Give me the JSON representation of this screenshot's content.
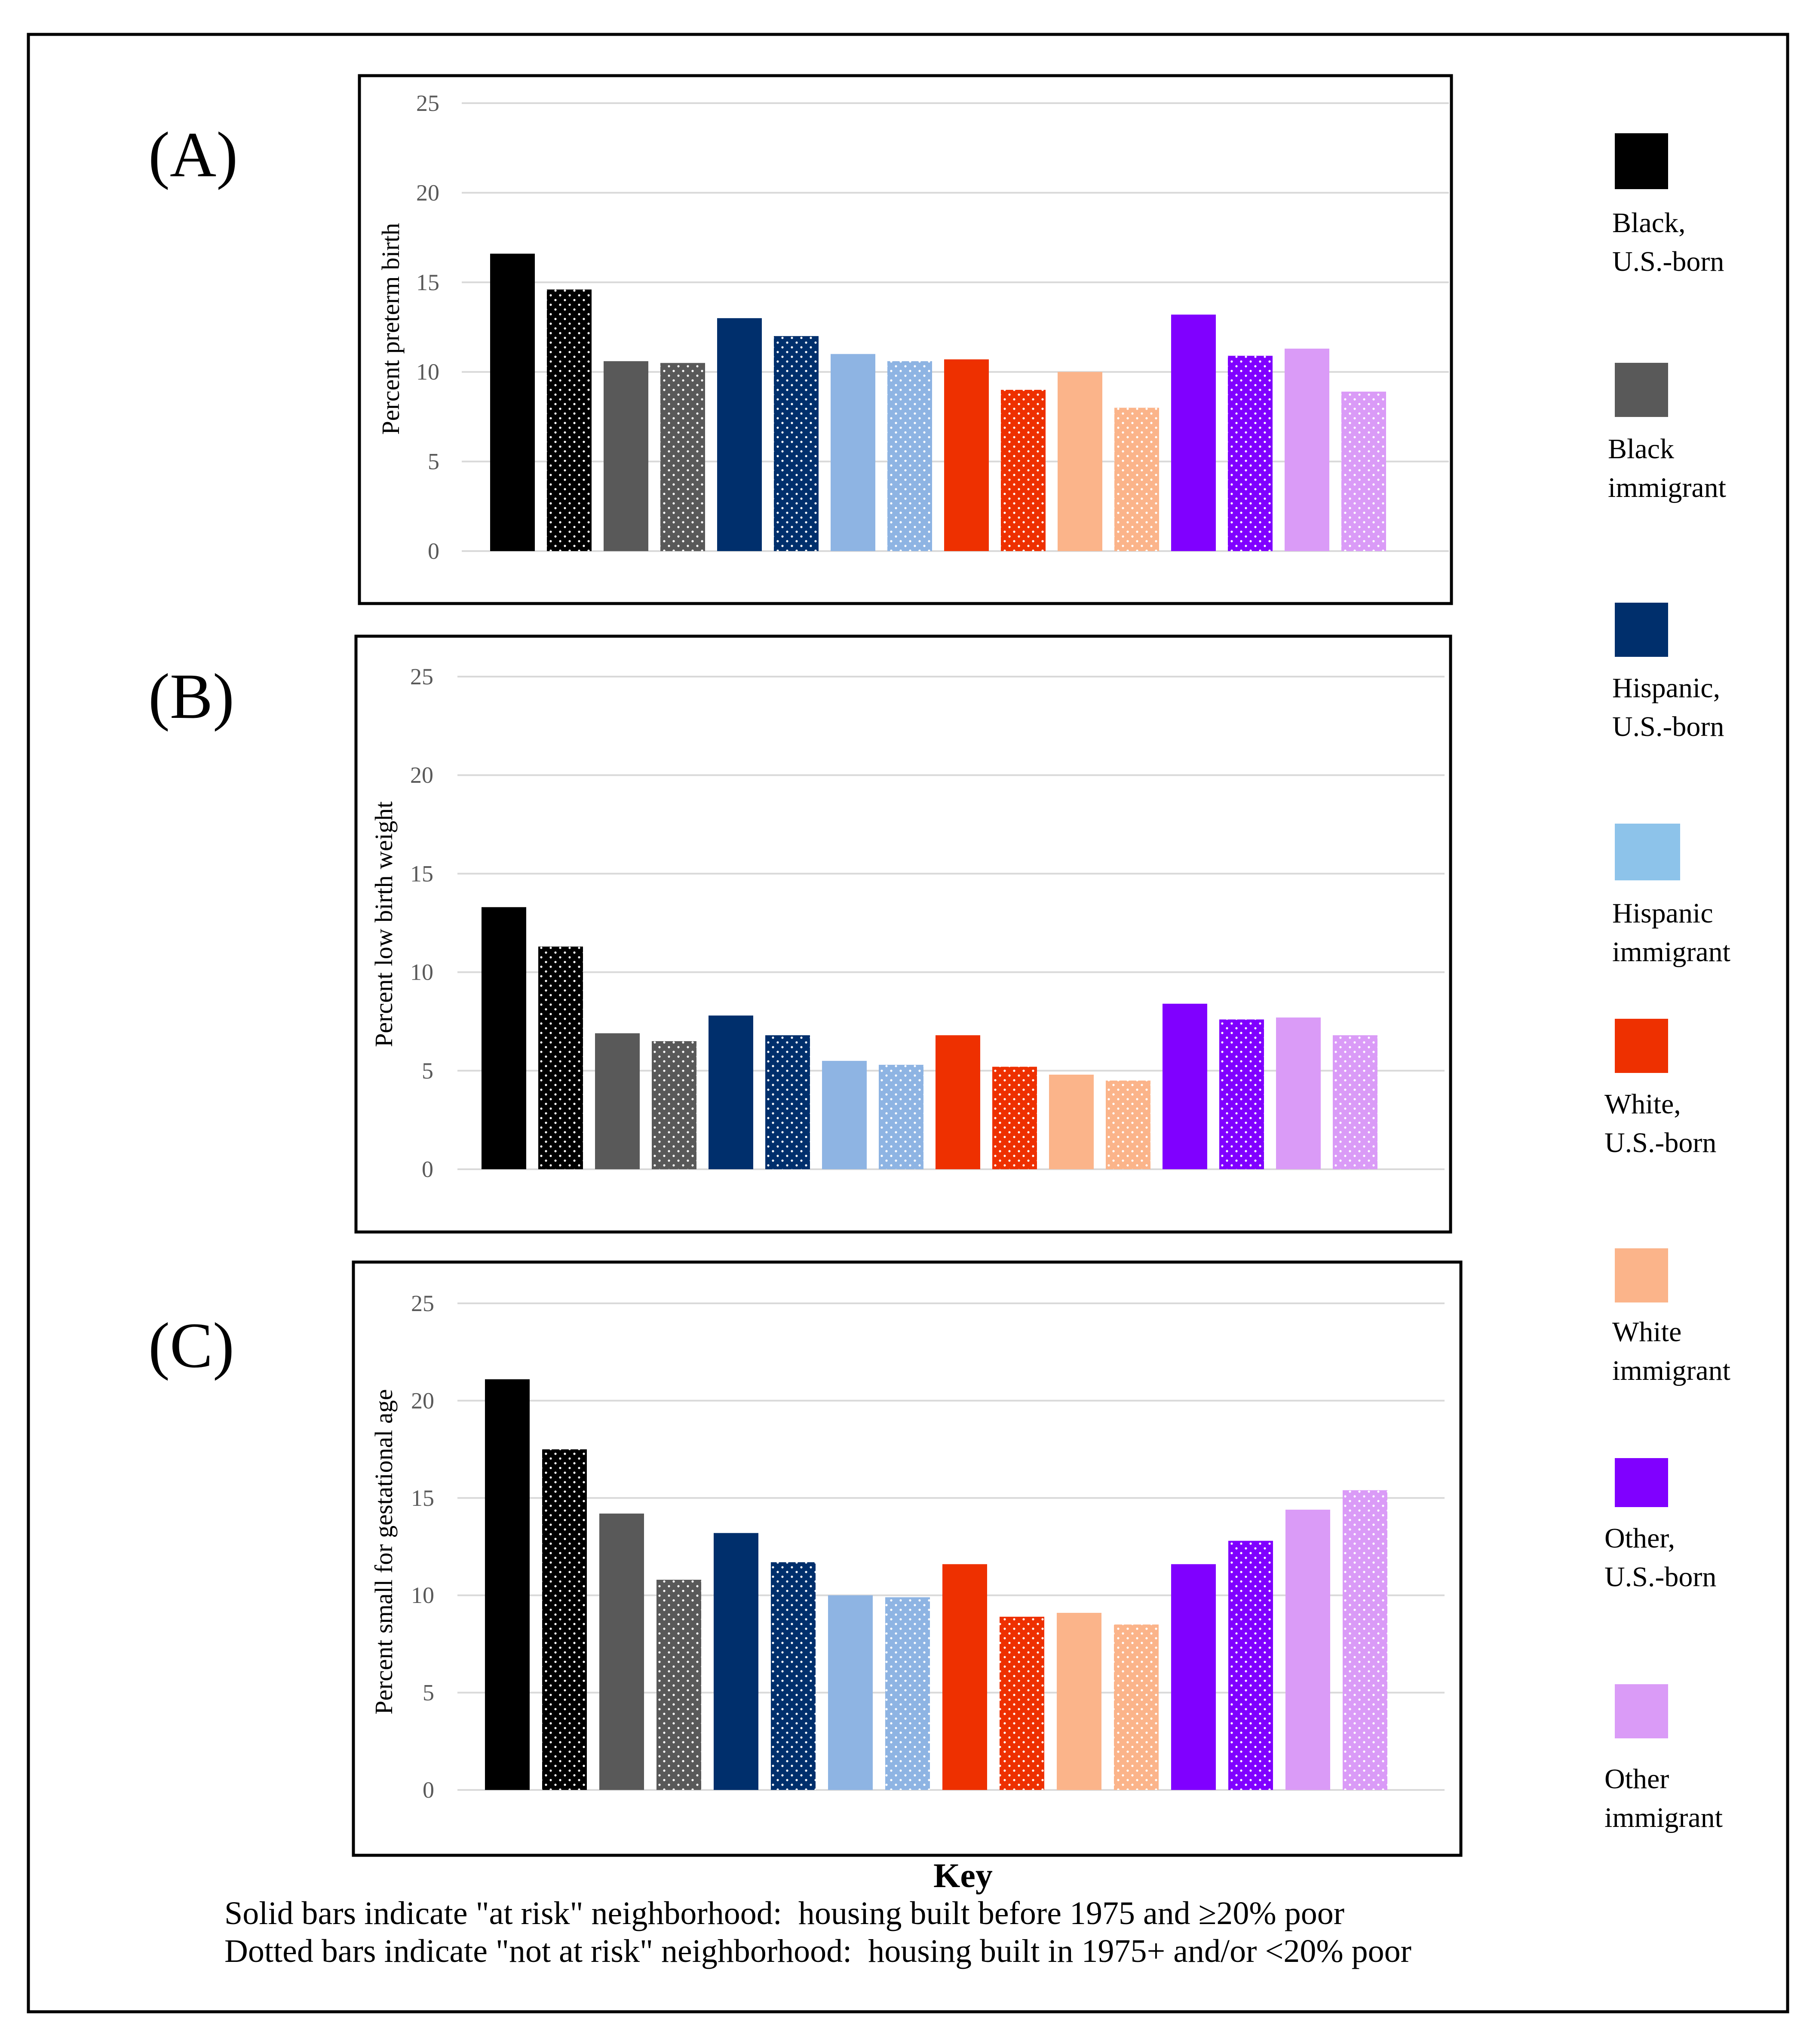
{
  "chart_data": [
    {
      "type": "bar",
      "panel_label": "(A)",
      "ylabel": "Percent preterm birth",
      "ylim": [
        0,
        25
      ],
      "yticks": [
        "0",
        "5",
        "10",
        "15",
        "20",
        "25"
      ],
      "values": [
        16.6,
        14.6,
        10.6,
        10.5,
        13.0,
        12.0,
        11.0,
        10.6,
        10.7,
        9.0,
        10.0,
        8.0,
        13.2,
        10.9,
        11.3,
        8.9
      ]
    },
    {
      "type": "bar",
      "panel_label": "(B)",
      "ylabel": "Percent low birth weight",
      "ylim": [
        0,
        25
      ],
      "yticks": [
        "0",
        "5",
        "10",
        "15",
        "20",
        "25"
      ],
      "values": [
        13.3,
        11.3,
        6.9,
        6.5,
        7.8,
        6.8,
        5.5,
        5.3,
        6.8,
        5.2,
        4.8,
        4.5,
        8.4,
        7.6,
        7.7,
        6.8
      ]
    },
    {
      "type": "bar",
      "panel_label": "(C)",
      "ylabel": "Percent small for gestational age",
      "ylim": [
        0,
        25
      ],
      "yticks": [
        "0",
        "5",
        "10",
        "15",
        "20",
        "25"
      ],
      "values": [
        21.1,
        17.5,
        14.2,
        10.8,
        13.2,
        11.7,
        10.0,
        9.9,
        11.6,
        8.9,
        9.1,
        8.5,
        11.6,
        12.8,
        14.4,
        15.4
      ]
    }
  ],
  "bar_colors": [
    "#000000",
    "#000000",
    "#595959",
    "#595959",
    "#002f6c",
    "#002f6c",
    "#8eb4e3",
    "#8eb4e3",
    "#ee3000",
    "#ee3000",
    "#fbb48a",
    "#fbb48a",
    "#8000ff",
    "#8000ff",
    "#da9bf7",
    "#da9bf7"
  ],
  "bar_patterns": [
    "solid",
    "dotted",
    "solid",
    "dotted",
    "solid",
    "dotted",
    "solid",
    "dotted",
    "solid",
    "dotted",
    "solid",
    "dotted",
    "solid",
    "dotted",
    "solid",
    "dotted"
  ],
  "legend": [
    {
      "line1": "Black,",
      "line2": "U.S.-born",
      "color": "#000000"
    },
    {
      "line1": "Black",
      "line2": "immigrant",
      "color": "#595959"
    },
    {
      "line1": "Hispanic,",
      "line2": "U.S.-born",
      "color": "#002f6c"
    },
    {
      "line1": "Hispanic",
      "line2": "immigrant",
      "color": "#8dc3ea"
    },
    {
      "line1": "White,",
      "line2": "U.S.-born",
      "color": "#ee3000"
    },
    {
      "line1": "White",
      "line2": "immigrant",
      "color": "#fbb48a"
    },
    {
      "line1": "Other,",
      "line2": "U.S.-born",
      "color": "#8000ff"
    },
    {
      "line1": "Other",
      "line2": "immigrant",
      "color": "#da9bf7"
    }
  ],
  "key": {
    "title": "Key",
    "line1": "Solid bars indicate \"at risk\" neighborhood:  housing built before 1975 and ≥20% poor",
    "line2": "Dotted bars indicate \"not at risk\" neighborhood:  housing built in 1975+ and/or <20% poor"
  }
}
